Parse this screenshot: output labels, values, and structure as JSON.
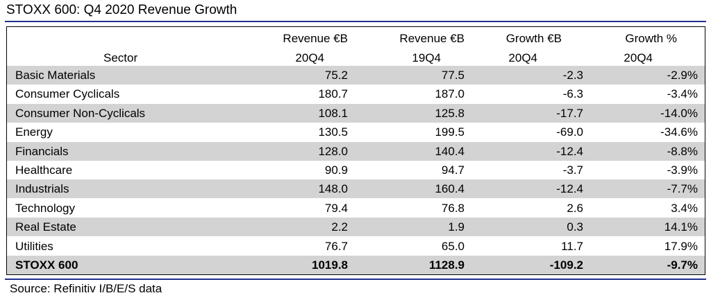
{
  "title": "STOXX 600: Q4 2020 Revenue Growth",
  "headers": {
    "sector": "Sector",
    "rev_20q4_l1": "Revenue €B",
    "rev_20q4_l2": "20Q4",
    "rev_19q4_l1": "Revenue €B",
    "rev_19q4_l2": "19Q4",
    "growth_eur_l1": "Growth €B",
    "growth_eur_l2": "20Q4",
    "growth_pct_l1": "Growth %",
    "growth_pct_l2": "20Q4"
  },
  "rows": [
    {
      "sector": "Basic Materials",
      "rev20": "75.2",
      "rev19": "77.5",
      "growth_eur": "-2.3",
      "growth_pct": "-2.9%"
    },
    {
      "sector": "Consumer Cyclicals",
      "rev20": "180.7",
      "rev19": "187.0",
      "growth_eur": "-6.3",
      "growth_pct": "-3.4%"
    },
    {
      "sector": "Consumer Non-Cyclicals",
      "rev20": "108.1",
      "rev19": "125.8",
      "growth_eur": "-17.7",
      "growth_pct": "-14.0%"
    },
    {
      "sector": "Energy",
      "rev20": "130.5",
      "rev19": "199.5",
      "growth_eur": "-69.0",
      "growth_pct": "-34.6%"
    },
    {
      "sector": "Financials",
      "rev20": "128.0",
      "rev19": "140.4",
      "growth_eur": "-12.4",
      "growth_pct": "-8.8%"
    },
    {
      "sector": "Healthcare",
      "rev20": "90.9",
      "rev19": "94.7",
      "growth_eur": "-3.7",
      "growth_pct": "-3.9%"
    },
    {
      "sector": "Industrials",
      "rev20": "148.0",
      "rev19": "160.4",
      "growth_eur": "-12.4",
      "growth_pct": "-7.7%"
    },
    {
      "sector": "Technology",
      "rev20": "79.4",
      "rev19": "76.8",
      "growth_eur": "2.6",
      "growth_pct": "3.4%"
    },
    {
      "sector": "Real Estate",
      "rev20": "2.2",
      "rev19": "1.9",
      "growth_eur": "0.3",
      "growth_pct": "14.1%"
    },
    {
      "sector": "Utilities",
      "rev20": "76.7",
      "rev19": "65.0",
      "growth_eur": "11.7",
      "growth_pct": "17.9%"
    }
  ],
  "total": {
    "sector": "STOXX 600",
    "rev20": "1019.8",
    "rev19": "1128.9",
    "growth_eur": "-109.2",
    "growth_pct": "-9.7%"
  },
  "source": "Source: Refinitiv I/B/E/S data",
  "colors": {
    "rule": "#1f2f8f",
    "shade": "#d3d3d3"
  }
}
